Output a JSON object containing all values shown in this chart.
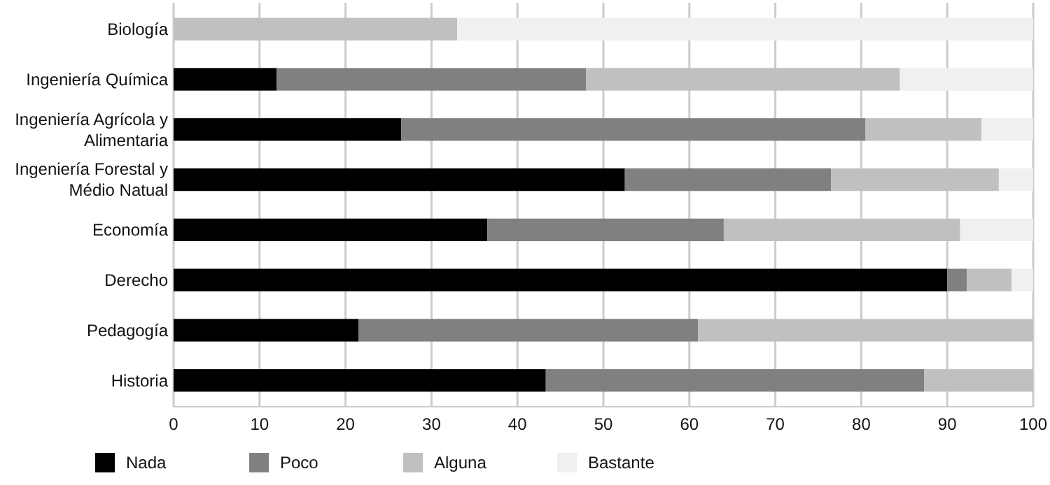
{
  "chart_data": {
    "type": "bar",
    "orientation": "horizontal",
    "stacked": true,
    "categories": [
      "Biología",
      "Ingeniería Química",
      "Ingeniería Agrícola y Alimentaria",
      "Ingeniería Forestal y Médio Natual",
      "Economía",
      "Derecho",
      "Pedagogía",
      "Historia"
    ],
    "series": [
      {
        "name": "Nada",
        "color": "#000000",
        "values": [
          0,
          12,
          26.5,
          52.5,
          36.5,
          90,
          21.5,
          43.3
        ]
      },
      {
        "name": "Poco",
        "color": "#808080",
        "values": [
          0,
          36,
          54,
          24,
          27.5,
          2.3,
          39.5,
          44
        ]
      },
      {
        "name": "Alguna",
        "color": "#c0c0c0",
        "values": [
          33,
          36.5,
          13.5,
          19.5,
          27.5,
          5.2,
          39,
          12.7
        ]
      },
      {
        "name": "Bastante",
        "color": "#f0f0f0",
        "values": [
          67,
          15.5,
          6,
          4,
          8.5,
          2.5,
          0,
          0
        ]
      }
    ],
    "xlim": [
      0,
      100
    ],
    "xticks": [
      0,
      10,
      20,
      30,
      40,
      50,
      60,
      70,
      80,
      90,
      100
    ],
    "grid": "x",
    "legend": "bottom"
  }
}
